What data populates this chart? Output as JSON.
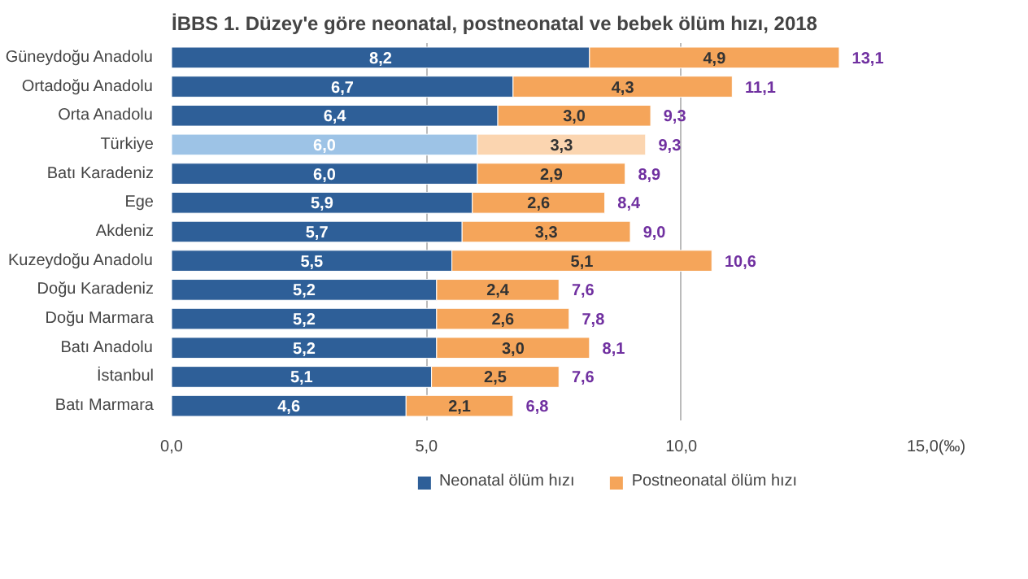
{
  "chart_data": {
    "type": "bar",
    "title": "İBBS 1. Düzey'e göre neonatal, postneonatal ve bebek ölüm hızı, 2018",
    "orientation": "horizontal",
    "stacked": true,
    "categories": [
      "Güneydoğu Anadolu",
      "Ortadoğu Anadolu",
      "Orta Anadolu",
      "Türkiye",
      "Batı Karadeniz",
      "Ege",
      "Akdeniz",
      "Kuzeydoğu Anadolu",
      "Doğu Karadeniz",
      "Doğu Marmara",
      "Batı Anadolu",
      "İstanbul",
      "Batı Marmara"
    ],
    "series": [
      {
        "name": "Neonatal ölüm hızı",
        "color": "#2e5f98",
        "colors": [
          "#2e5f98",
          "#2e5f98",
          "#2e5f98",
          "#9dc3e6",
          "#2e5f98",
          "#2e5f98",
          "#2e5f98",
          "#2e5f98",
          "#2e5f98",
          "#2e5f98",
          "#2e5f98",
          "#2e5f98",
          "#2e5f98"
        ],
        "values": [
          8.2,
          6.7,
          6.4,
          6.0,
          6.0,
          5.9,
          5.7,
          5.5,
          5.2,
          5.2,
          5.2,
          5.1,
          4.6
        ],
        "value_labels": [
          "8,2",
          "6,7",
          "6,4",
          "6,0",
          "6,0",
          "5,9",
          "5,7",
          "5,5",
          "5,2",
          "5,2",
          "5,2",
          "5,1",
          "4,6"
        ]
      },
      {
        "name": "Postneonatal ölüm hızı",
        "color": "#f5a55a",
        "colors": [
          "#f5a55a",
          "#f5a55a",
          "#f5a55a",
          "#fbd5b0",
          "#f5a55a",
          "#f5a55a",
          "#f5a55a",
          "#f5a55a",
          "#f5a55a",
          "#f5a55a",
          "#f5a55a",
          "#f5a55a",
          "#f5a55a"
        ],
        "values": [
          4.9,
          4.3,
          3.0,
          3.3,
          2.9,
          2.6,
          3.3,
          5.1,
          2.4,
          2.6,
          3.0,
          2.5,
          2.1
        ],
        "value_labels": [
          "4,9",
          "4,3",
          "3,0",
          "3,3",
          "2,9",
          "2,6",
          "3,3",
          "5,1",
          "2,4",
          "2,6",
          "3,0",
          "2,5",
          "2,1"
        ]
      }
    ],
    "totals": [
      "13,1",
      "11,1",
      "9,3",
      "9,3",
      "8,9",
      "8,4",
      "9,0",
      "10,6",
      "7,6",
      "7,8",
      "8,1",
      "7,6",
      "6,8"
    ],
    "xlim": [
      0,
      15
    ],
    "xticks": [
      {
        "value": 0,
        "label": "0,0"
      },
      {
        "value": 5,
        "label": "5,0"
      },
      {
        "value": 10,
        "label": "10,0"
      },
      {
        "value": 15,
        "label": "15,0(‰)"
      }
    ],
    "grid": "x",
    "legend": "bottom"
  }
}
